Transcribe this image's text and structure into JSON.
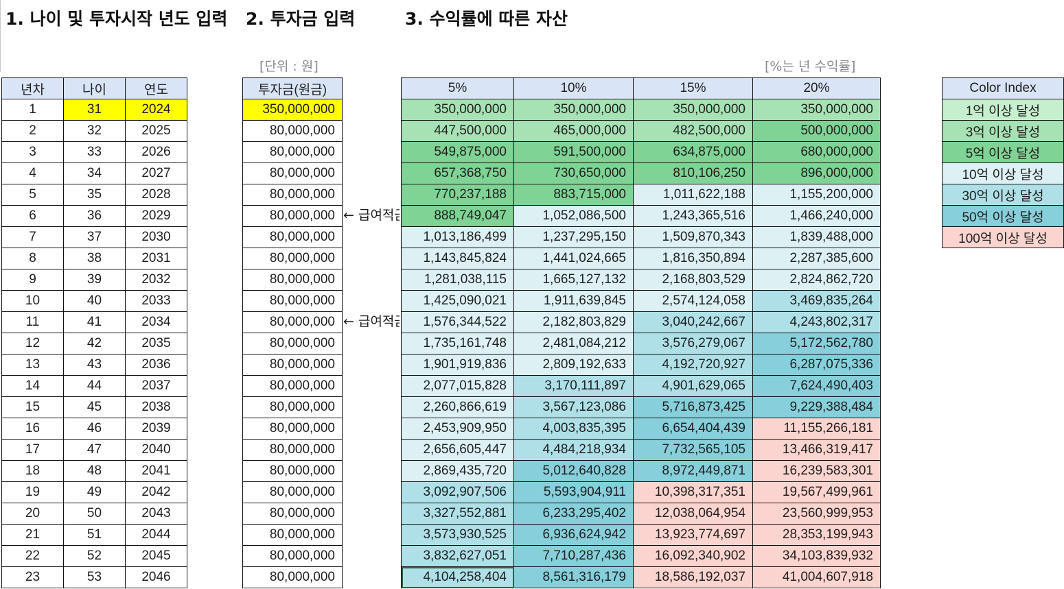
{
  "headings": {
    "h1": "1. 나이 및 투자시작 년도 입력",
    "h2": "2. 투자금 입력",
    "h3": "3. 수익률에 따른 자산"
  },
  "notes": {
    "unit": "[단위 : 원]",
    "rate": "[%는 년 수익률]",
    "salary_a": "← 급여적금",
    "salary_b": "← 급여적금"
  },
  "colors": {
    "header_fill": "#d9e5f7",
    "input_highlight": "#ffff00",
    "over_100m": "#c6efce",
    "over_300m": "#a6e2b4",
    "over_500m": "#7fd394",
    "over_1b": "#ddf1f5",
    "over_3b": "#afe0e8",
    "over_5b": "#86cfdb",
    "over_10b": "#fbd4cf"
  },
  "basic": {
    "headers": [
      "년차",
      "나이",
      "연도"
    ],
    "rows": [
      [
        "1",
        "31",
        "2024"
      ],
      [
        "2",
        "32",
        "2025"
      ],
      [
        "3",
        "33",
        "2026"
      ],
      [
        "4",
        "34",
        "2027"
      ],
      [
        "5",
        "35",
        "2028"
      ],
      [
        "6",
        "36",
        "2029"
      ],
      [
        "7",
        "37",
        "2030"
      ],
      [
        "8",
        "38",
        "2031"
      ],
      [
        "9",
        "39",
        "2032"
      ],
      [
        "10",
        "40",
        "2033"
      ],
      [
        "11",
        "41",
        "2034"
      ],
      [
        "12",
        "42",
        "2035"
      ],
      [
        "13",
        "43",
        "2036"
      ],
      [
        "14",
        "44",
        "2037"
      ],
      [
        "15",
        "45",
        "2038"
      ],
      [
        "16",
        "46",
        "2039"
      ],
      [
        "17",
        "47",
        "2040"
      ],
      [
        "18",
        "48",
        "2041"
      ],
      [
        "19",
        "49",
        "2042"
      ],
      [
        "20",
        "50",
        "2043"
      ],
      [
        "21",
        "51",
        "2044"
      ],
      [
        "22",
        "52",
        "2045"
      ],
      [
        "23",
        "53",
        "2046"
      ]
    ]
  },
  "investment": {
    "header": "투자금(원금)",
    "values": [
      "350,000,000",
      "80,000,000",
      "80,000,000",
      "80,000,000",
      "80,000,000",
      "80,000,000",
      "80,000,000",
      "80,000,000",
      "80,000,000",
      "80,000,000",
      "80,000,000",
      "80,000,000",
      "80,000,000",
      "80,000,000",
      "80,000,000",
      "80,000,000",
      "80,000,000",
      "80,000,000",
      "80,000,000",
      "80,000,000",
      "80,000,000",
      "80,000,000",
      "80,000,000"
    ]
  },
  "assets": {
    "headers": [
      "5%",
      "10%",
      "15%",
      "20%"
    ],
    "rows": [
      [
        "350,000,000",
        "350,000,000",
        "350,000,000",
        "350,000,000"
      ],
      [
        "447,500,000",
        "465,000,000",
        "482,500,000",
        "500,000,000"
      ],
      [
        "549,875,000",
        "591,500,000",
        "634,875,000",
        "680,000,000"
      ],
      [
        "657,368,750",
        "730,650,000",
        "810,106,250",
        "896,000,000"
      ],
      [
        "770,237,188",
        "883,715,000",
        "1,011,622,188",
        "1,155,200,000"
      ],
      [
        "888,749,047",
        "1,052,086,500",
        "1,243,365,516",
        "1,466,240,000"
      ],
      [
        "1,013,186,499",
        "1,237,295,150",
        "1,509,870,343",
        "1,839,488,000"
      ],
      [
        "1,143,845,824",
        "1,441,024,665",
        "1,816,350,894",
        "2,287,385,600"
      ],
      [
        "1,281,038,115",
        "1,665,127,132",
        "2,168,803,529",
        "2,824,862,720"
      ],
      [
        "1,425,090,021",
        "1,911,639,845",
        "2,574,124,058",
        "3,469,835,264"
      ],
      [
        "1,576,344,522",
        "2,182,803,829",
        "3,040,242,667",
        "4,243,802,317"
      ],
      [
        "1,735,161,748",
        "2,481,084,212",
        "3,576,279,067",
        "5,172,562,780"
      ],
      [
        "1,901,919,836",
        "2,809,192,633",
        "4,192,720,927",
        "6,287,075,336"
      ],
      [
        "2,077,015,828",
        "3,170,111,897",
        "4,901,629,065",
        "7,624,490,403"
      ],
      [
        "2,260,866,619",
        "3,567,123,086",
        "5,716,873,425",
        "9,229,388,484"
      ],
      [
        "2,453,909,950",
        "4,003,835,395",
        "6,654,404,439",
        "11,155,266,181"
      ],
      [
        "2,656,605,447",
        "4,484,218,934",
        "7,732,565,105",
        "13,466,319,417"
      ],
      [
        "2,869,435,720",
        "5,012,640,828",
        "8,972,449,871",
        "16,239,583,301"
      ],
      [
        "3,092,907,506",
        "5,593,904,911",
        "10,398,317,351",
        "19,567,499,961"
      ],
      [
        "3,327,552,881",
        "6,233,295,402",
        "12,038,064,954",
        "23,560,999,953"
      ],
      [
        "3,573,930,525",
        "6,936,624,942",
        "13,923,774,697",
        "28,353,199,943"
      ],
      [
        "3,832,627,051",
        "7,710,287,436",
        "16,092,340,902",
        "34,103,839,932"
      ],
      [
        "4,104,258,404",
        "8,561,316,179",
        "18,586,192,037",
        "41,004,607,918"
      ]
    ]
  },
  "legend": {
    "header": "Color Index",
    "items": [
      "1억 이상 달성",
      "3억 이상 달성",
      "5억 이상 달성",
      "10억 이상 달성",
      "30억 이상 달성",
      "50억 이상 달성",
      "100억 이상 달성"
    ]
  }
}
